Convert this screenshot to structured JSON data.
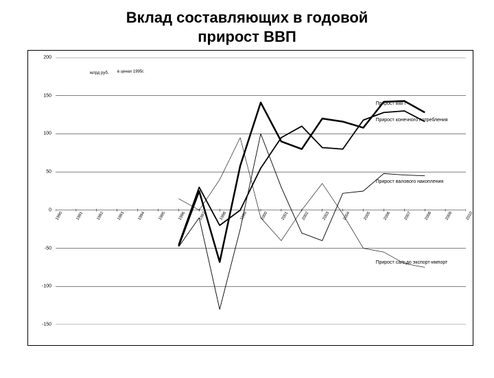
{
  "title_line1": "Вклад составляющих в годовой",
  "title_line2": "прирост ВВП",
  "title_fontsize": 22,
  "note1": "млрд руб.",
  "note2": "в ценах 1995г.",
  "chart": {
    "type": "line",
    "background_color": "#ffffff",
    "grid_color": "#000000",
    "grid_width": 0.5,
    "ylim": [
      -150,
      200
    ],
    "ytick_step": 50,
    "yticks": [
      -150,
      -100,
      -50,
      0,
      50,
      100,
      150,
      200
    ],
    "xcategories": [
      "1990",
      "1991",
      "1992",
      "1993",
      "1994",
      "1995",
      "1996",
      "1997",
      "1998",
      "1999",
      "2000",
      "2001",
      "2002",
      "2003",
      "2004",
      "2005",
      "2006",
      "2007",
      "2008",
      "2009",
      "2010"
    ],
    "xtick_fontsize": 6,
    "ytick_fontsize": 7,
    "series": [
      {
        "name": "Прирост ВВП",
        "label": "Прирост ВВП",
        "color": "#000000",
        "stroke_width": 2.5,
        "data": [
          null,
          null,
          null,
          null,
          null,
          null,
          -47,
          25,
          -68,
          58,
          141,
          90,
          80,
          120,
          116,
          108,
          142,
          143,
          128,
          null,
          null
        ],
        "label_pos": {
          "x_frac": 0.78,
          "y_val": 140
        }
      },
      {
        "name": "Прирост конечного потребления",
        "label": "Прирост конечного потребления",
        "color": "#000000",
        "stroke_width": 1.8,
        "data": [
          null,
          null,
          null,
          null,
          null,
          null,
          -45,
          30,
          -20,
          0,
          55,
          95,
          110,
          82,
          80,
          118,
          128,
          130,
          116,
          null,
          null
        ],
        "label_pos": {
          "x_frac": 0.78,
          "y_val": 118
        }
      },
      {
        "name": "Прирост валового накопления",
        "label": "Прирост валового накопления",
        "color": "#000000",
        "stroke_width": 0.9,
        "data": [
          null,
          null,
          null,
          null,
          null,
          null,
          -48,
          -10,
          -130,
          -25,
          100,
          30,
          -30,
          -40,
          22,
          25,
          48,
          46,
          45,
          null,
          null
        ],
        "label_pos": {
          "x_frac": 0.78,
          "y_val": 38
        }
      },
      {
        "name": "Прирост сальдо экспорт-импорт",
        "label": "Прирост сальдо экспорт-импорт",
        "color": "#000000",
        "stroke_width": 0.6,
        "data": [
          null,
          null,
          null,
          null,
          null,
          null,
          15,
          0,
          40,
          95,
          -10,
          -40,
          0,
          35,
          -5,
          -50,
          -55,
          -70,
          -75,
          null,
          null
        ],
        "label_pos": {
          "x_frac": 0.78,
          "y_val": -68
        }
      }
    ]
  }
}
